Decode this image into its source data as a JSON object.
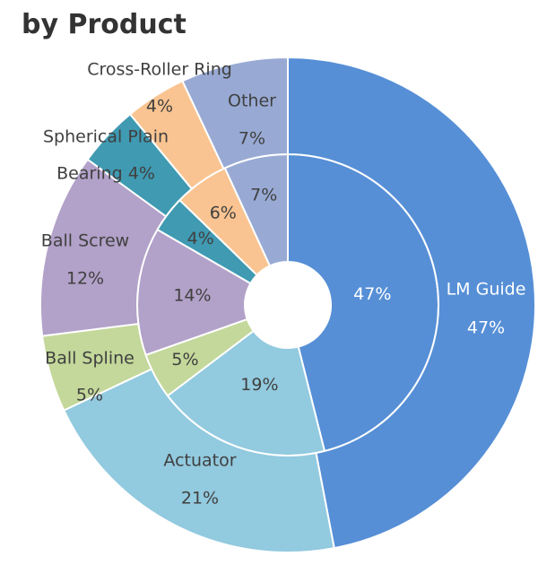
{
  "title": "by Product",
  "chart_data": {
    "type": "donut",
    "title": "by Product",
    "rings": [
      {
        "name": "",
        "values": [
          {
            "label": "LM Guide",
            "value": 47,
            "display": "47%",
            "color": "#568fd6"
          },
          {
            "label": "Actuator",
            "value": 19,
            "display": "19%",
            "color": "#92cadf"
          },
          {
            "label": "Ball Spline",
            "value": 5,
            "display": "5%",
            "color": "#c3d89a"
          },
          {
            "label": "Ball Screw",
            "value": 14,
            "display": "14%",
            "color": "#b2a1c8"
          },
          {
            "label": "Spherical Plain Bearing",
            "value": 4,
            "display": "4%",
            "color": "#3f9ab2"
          },
          {
            "label": "Cross-Roller Ring",
            "value": 6,
            "display": "6%",
            "color": "#f9c491"
          },
          {
            "label": "Other",
            "value": 7,
            "display": "7%",
            "color": "#98aad4"
          }
        ]
      },
      {
        "name": "",
        "values": [
          {
            "label": "LM Guide",
            "value": 47,
            "display": "47%",
            "color": "#568fd6"
          },
          {
            "label": "Actuator",
            "value": 21,
            "display": "21%",
            "color": "#92cadf"
          },
          {
            "label": "Ball Spline",
            "value": 5,
            "display": "5%",
            "color": "#c3d89a"
          },
          {
            "label": "Ball Screw",
            "value": 12,
            "display": "12%",
            "color": "#b2a1c8"
          },
          {
            "label": "Spherical Plain Bearing",
            "value": 4,
            "display": "4%",
            "color": "#3f9ab2"
          },
          {
            "label": "Cross-Roller Ring",
            "value": 4,
            "display": "4%",
            "color": "#f9c491"
          },
          {
            "label": "Other",
            "value": 7,
            "display": "7%",
            "color": "#98aad4"
          }
        ]
      }
    ],
    "outer_labels": [
      {
        "lines": [
          "LM Guide",
          "47%"
        ]
      },
      {
        "lines": [
          "Actuator",
          "21%"
        ]
      },
      {
        "lines": [
          "Ball Spline",
          "5%"
        ]
      },
      {
        "lines": [
          "Ball Screw",
          "12%"
        ]
      },
      {
        "lines": [
          "Spherical Plain",
          "Bearing 4%"
        ]
      },
      {
        "lines": [
          "Cross-Roller Ring",
          "4%"
        ]
      },
      {
        "lines": [
          "Other",
          "7%"
        ]
      }
    ]
  }
}
